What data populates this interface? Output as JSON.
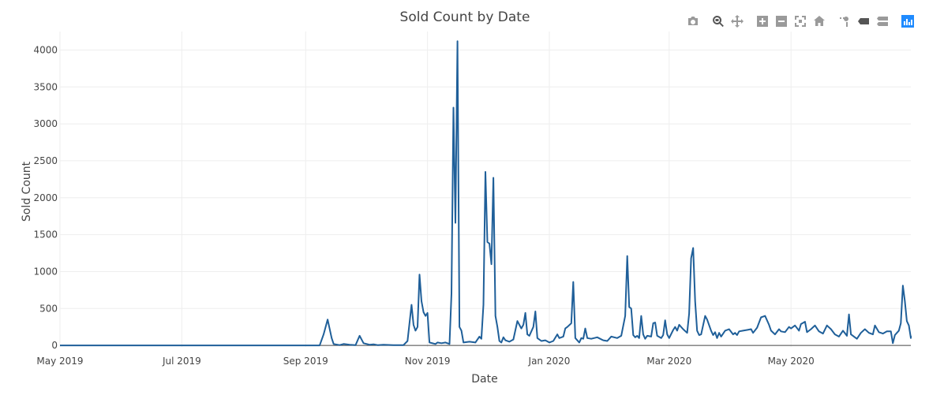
{
  "modebar": {
    "buttons": [
      {
        "icon": "camera-icon",
        "label": "Download plot as png"
      },
      {
        "icon": "zoom-icon",
        "label": "Zoom"
      },
      {
        "icon": "pan-icon",
        "label": "Pan"
      },
      {
        "icon": "zoom-in-icon",
        "label": "Zoom in"
      },
      {
        "icon": "zoom-out-icon",
        "label": "Zoom out"
      },
      {
        "icon": "autoscale-icon",
        "label": "Autoscale"
      },
      {
        "icon": "home-icon",
        "label": "Reset axes"
      },
      {
        "icon": "spike-lines-icon",
        "label": "Toggle Spike Lines"
      },
      {
        "icon": "hover-closest-icon",
        "label": "Show closest data on hover"
      },
      {
        "icon": "hover-compare-icon",
        "label": "Compare data on hover"
      },
      {
        "icon": "plotly-logo-icon",
        "label": "Produced with Plotly"
      }
    ]
  },
  "chart_data": {
    "type": "line",
    "title": "Sold Count by Date",
    "xlabel": "Date",
    "ylabel": "Sold Count",
    "xlim": [
      "2019-05-01",
      "2020-06-30"
    ],
    "ylim": [
      -20,
      4250
    ],
    "x_ticks": [
      {
        "label": "May 2019",
        "date": "2019-05-01"
      },
      {
        "label": "Jul 2019",
        "date": "2019-07-01"
      },
      {
        "label": "Sep 2019",
        "date": "2019-09-01"
      },
      {
        "label": "Nov 2019",
        "date": "2019-11-01"
      },
      {
        "label": "Jan 2020",
        "date": "2020-01-01"
      },
      {
        "label": "Mar 2020",
        "date": "2020-03-01"
      },
      {
        "label": "May 2020",
        "date": "2020-05-01"
      }
    ],
    "y_ticks": [
      0,
      500,
      1000,
      1500,
      2000,
      2500,
      3000,
      3500,
      4000
    ],
    "grid": true,
    "line_color": "#1f5f99",
    "series": [
      {
        "points": [
          [
            "2019-05-01",
            0
          ],
          [
            "2019-09-08",
            0
          ],
          [
            "2019-09-10",
            150
          ],
          [
            "2019-09-12",
            350
          ],
          [
            "2019-09-14",
            100
          ],
          [
            "2019-09-15",
            20
          ],
          [
            "2019-09-18",
            5
          ],
          [
            "2019-09-20",
            20
          ],
          [
            "2019-09-23",
            10
          ],
          [
            "2019-09-26",
            5
          ],
          [
            "2019-09-28",
            130
          ],
          [
            "2019-09-30",
            30
          ],
          [
            "2019-10-03",
            10
          ],
          [
            "2019-10-05",
            15
          ],
          [
            "2019-10-07",
            5
          ],
          [
            "2019-10-10",
            10
          ],
          [
            "2019-10-15",
            5
          ],
          [
            "2019-10-20",
            5
          ],
          [
            "2019-10-22",
            60
          ],
          [
            "2019-10-24",
            550
          ],
          [
            "2019-10-25",
            280
          ],
          [
            "2019-10-26",
            200
          ],
          [
            "2019-10-27",
            250
          ],
          [
            "2019-10-28",
            960
          ],
          [
            "2019-10-29",
            600
          ],
          [
            "2019-10-30",
            450
          ],
          [
            "2019-10-31",
            400
          ],
          [
            "2019-11-01",
            440
          ],
          [
            "2019-11-02",
            40
          ],
          [
            "2019-11-05",
            20
          ],
          [
            "2019-11-06",
            40
          ],
          [
            "2019-11-08",
            30
          ],
          [
            "2019-11-10",
            40
          ],
          [
            "2019-11-12",
            20
          ],
          [
            "2019-11-13",
            700
          ],
          [
            "2019-11-14",
            3220
          ],
          [
            "2019-11-15",
            1660
          ],
          [
            "2019-11-16",
            4120
          ],
          [
            "2019-11-17",
            250
          ],
          [
            "2019-11-18",
            200
          ],
          [
            "2019-11-19",
            40
          ],
          [
            "2019-11-22",
            50
          ],
          [
            "2019-11-25",
            40
          ],
          [
            "2019-11-27",
            120
          ],
          [
            "2019-11-28",
            90
          ],
          [
            "2019-11-29",
            550
          ],
          [
            "2019-11-30",
            2350
          ],
          [
            "2019-12-01",
            1400
          ],
          [
            "2019-12-02",
            1380
          ],
          [
            "2019-12-03",
            1100
          ],
          [
            "2019-12-04",
            2270
          ],
          [
            "2019-12-05",
            400
          ],
          [
            "2019-12-06",
            250
          ],
          [
            "2019-12-07",
            60
          ],
          [
            "2019-12-08",
            40
          ],
          [
            "2019-12-09",
            110
          ],
          [
            "2019-12-10",
            70
          ],
          [
            "2019-12-12",
            50
          ],
          [
            "2019-12-14",
            80
          ],
          [
            "2019-12-16",
            330
          ],
          [
            "2019-12-18",
            230
          ],
          [
            "2019-12-19",
            280
          ],
          [
            "2019-12-20",
            440
          ],
          [
            "2019-12-21",
            150
          ],
          [
            "2019-12-22",
            130
          ],
          [
            "2019-12-24",
            250
          ],
          [
            "2019-12-25",
            460
          ],
          [
            "2019-12-26",
            100
          ],
          [
            "2019-12-28",
            60
          ],
          [
            "2019-12-30",
            70
          ],
          [
            "2020-01-01",
            40
          ],
          [
            "2020-01-03",
            60
          ],
          [
            "2020-01-05",
            150
          ],
          [
            "2020-01-06",
            100
          ],
          [
            "2020-01-08",
            120
          ],
          [
            "2020-01-09",
            230
          ],
          [
            "2020-01-10",
            250
          ],
          [
            "2020-01-12",
            300
          ],
          [
            "2020-01-13",
            860
          ],
          [
            "2020-01-14",
            100
          ],
          [
            "2020-01-16",
            40
          ],
          [
            "2020-01-17",
            100
          ],
          [
            "2020-01-18",
            90
          ],
          [
            "2020-01-19",
            230
          ],
          [
            "2020-01-20",
            100
          ],
          [
            "2020-01-22",
            90
          ],
          [
            "2020-01-25",
            110
          ],
          [
            "2020-01-28",
            70
          ],
          [
            "2020-01-30",
            60
          ],
          [
            "2020-02-01",
            120
          ],
          [
            "2020-02-04",
            100
          ],
          [
            "2020-02-06",
            130
          ],
          [
            "2020-02-08",
            400
          ],
          [
            "2020-02-09",
            1210
          ],
          [
            "2020-02-10",
            520
          ],
          [
            "2020-02-11",
            500
          ],
          [
            "2020-02-12",
            140
          ],
          [
            "2020-02-13",
            110
          ],
          [
            "2020-02-14",
            130
          ],
          [
            "2020-02-15",
            100
          ],
          [
            "2020-02-16",
            400
          ],
          [
            "2020-02-17",
            150
          ],
          [
            "2020-02-18",
            90
          ],
          [
            "2020-02-19",
            130
          ],
          [
            "2020-02-21",
            120
          ],
          [
            "2020-02-22",
            300
          ],
          [
            "2020-02-23",
            310
          ],
          [
            "2020-02-24",
            130
          ],
          [
            "2020-02-26",
            100
          ],
          [
            "2020-02-27",
            140
          ],
          [
            "2020-02-28",
            340
          ],
          [
            "2020-02-29",
            150
          ],
          [
            "2020-03-01",
            100
          ],
          [
            "2020-03-03",
            210
          ],
          [
            "2020-03-04",
            250
          ],
          [
            "2020-03-05",
            200
          ],
          [
            "2020-03-06",
            280
          ],
          [
            "2020-03-08",
            220
          ],
          [
            "2020-03-10",
            170
          ],
          [
            "2020-03-11",
            430
          ],
          [
            "2020-03-12",
            1180
          ],
          [
            "2020-03-13",
            1320
          ],
          [
            "2020-03-14",
            600
          ],
          [
            "2020-03-15",
            200
          ],
          [
            "2020-03-16",
            140
          ],
          [
            "2020-03-17",
            150
          ],
          [
            "2020-03-19",
            400
          ],
          [
            "2020-03-20",
            350
          ],
          [
            "2020-03-22",
            200
          ],
          [
            "2020-03-23",
            140
          ],
          [
            "2020-03-24",
            180
          ],
          [
            "2020-03-25",
            100
          ],
          [
            "2020-03-26",
            170
          ],
          [
            "2020-03-27",
            120
          ],
          [
            "2020-03-29",
            200
          ],
          [
            "2020-03-31",
            220
          ],
          [
            "2020-04-02",
            150
          ],
          [
            "2020-04-03",
            170
          ],
          [
            "2020-04-04",
            140
          ],
          [
            "2020-04-05",
            190
          ],
          [
            "2020-04-07",
            200
          ],
          [
            "2020-04-09",
            210
          ],
          [
            "2020-04-11",
            220
          ],
          [
            "2020-04-12",
            170
          ],
          [
            "2020-04-14",
            240
          ],
          [
            "2020-04-16",
            380
          ],
          [
            "2020-04-18",
            400
          ],
          [
            "2020-04-20",
            280
          ],
          [
            "2020-04-21",
            200
          ],
          [
            "2020-04-23",
            150
          ],
          [
            "2020-04-25",
            220
          ],
          [
            "2020-04-26",
            190
          ],
          [
            "2020-04-28",
            180
          ],
          [
            "2020-04-30",
            250
          ],
          [
            "2020-05-01",
            230
          ],
          [
            "2020-05-03",
            270
          ],
          [
            "2020-05-05",
            200
          ],
          [
            "2020-05-06",
            290
          ],
          [
            "2020-05-08",
            320
          ],
          [
            "2020-05-09",
            180
          ],
          [
            "2020-05-11",
            220
          ],
          [
            "2020-05-13",
            270
          ],
          [
            "2020-05-15",
            190
          ],
          [
            "2020-05-17",
            160
          ],
          [
            "2020-05-19",
            270
          ],
          [
            "2020-05-21",
            220
          ],
          [
            "2020-05-23",
            150
          ],
          [
            "2020-05-25",
            120
          ],
          [
            "2020-05-27",
            200
          ],
          [
            "2020-05-29",
            130
          ],
          [
            "2020-05-30",
            420
          ],
          [
            "2020-05-31",
            150
          ],
          [
            "2020-06-02",
            110
          ],
          [
            "2020-06-03",
            90
          ],
          [
            "2020-06-05",
            170
          ],
          [
            "2020-06-07",
            220
          ],
          [
            "2020-06-09",
            170
          ],
          [
            "2020-06-11",
            150
          ],
          [
            "2020-06-12",
            270
          ],
          [
            "2020-06-14",
            180
          ],
          [
            "2020-06-16",
            160
          ],
          [
            "2020-06-18",
            190
          ],
          [
            "2020-06-20",
            190
          ],
          [
            "2020-06-21",
            30
          ],
          [
            "2020-06-22",
            140
          ],
          [
            "2020-06-23",
            170
          ],
          [
            "2020-06-24",
            200
          ],
          [
            "2020-06-25",
            300
          ],
          [
            "2020-06-26",
            810
          ],
          [
            "2020-06-27",
            600
          ],
          [
            "2020-06-28",
            330
          ],
          [
            "2020-06-29",
            270
          ],
          [
            "2020-06-30",
            100
          ],
          [
            "2020-07-02",
            110
          ],
          [
            "2020-07-05",
            130
          ]
        ]
      }
    ]
  }
}
